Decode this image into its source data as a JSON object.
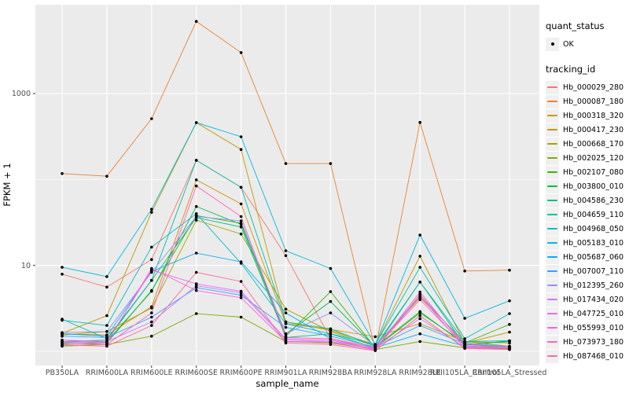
{
  "figure": {
    "background": "#FFFFFF",
    "panel_background": "#EBEBEB",
    "gridline_color": "#FFFFFF",
    "tick_text_color": "#4D4D4D",
    "point_color": "#000000"
  },
  "legend": {
    "quant_status": {
      "title": "quant_status",
      "items": [
        {
          "label": "OK",
          "marker": "point-icon",
          "color": "#000000"
        }
      ]
    },
    "tracking_id": {
      "title": "tracking_id"
    }
  },
  "chart_data": {
    "type": "line",
    "title": "",
    "xlabel": "sample_name",
    "ylabel": "FPKM + 1",
    "y_scale": "log10",
    "ylim": [
      1,
      10000
    ],
    "grid": "on",
    "legend_position": "right",
    "y_tick_labels": [
      {
        "label": "1000",
        "value": 1000
      },
      {
        "label": "10",
        "value": 10
      }
    ],
    "y_gridlines_major": [
      10,
      1000
    ],
    "y_gridlines_minor": [
      1,
      100
    ],
    "categories": [
      "PB350LA",
      "RRIM600LA",
      "RRIM600LE",
      "RRIM600SE",
      "RRIM600PE",
      "RRIM901LA",
      "RRIM928BA",
      "RRIM928LA",
      "RRIM928LE",
      "RRII105LA_Control",
      "RRII105LA_Stressed"
    ],
    "series": [
      {
        "name": "Hb_000029_280",
        "color": "#F8766D",
        "values": [
          7.9,
          5.6,
          11.7,
          167,
          81,
          13,
          1.4,
          1.05,
          4.6,
          1.2,
          1.1
        ]
      },
      {
        "name": "Hb_000087_180",
        "color": "#EA8331",
        "values": [
          117,
          109,
          509,
          6900,
          2990,
          153,
          153,
          1.05,
          461,
          8.6,
          8.8
        ]
      },
      {
        "name": "Hb_000318_320",
        "color": "#D89000",
        "values": [
          1.6,
          1.55,
          3.3,
          99,
          52,
          2.1,
          1.8,
          1.48,
          2.1,
          1.3,
          1.25
        ]
      },
      {
        "name": "Hb_000417_230",
        "color": "#C09B00",
        "values": [
          1.62,
          2.6,
          41.5,
          458,
          223,
          2.2,
          1.75,
          1.2,
          12.8,
          1.25,
          1.67
        ]
      },
      {
        "name": "Hb_000668_170",
        "color": "#A3A500",
        "values": [
          1.55,
          1.7,
          3.2,
          33.6,
          23.2,
          3.1,
          1.7,
          1.15,
          4.2,
          1.3,
          1.15
        ]
      },
      {
        "name": "Hb_002025_120",
        "color": "#7CAE00",
        "values": [
          1.15,
          1.2,
          1.5,
          2.75,
          2.5,
          1.3,
          1.25,
          1.05,
          1.3,
          1.1,
          1.08
        ]
      },
      {
        "name": "Hb_002107_080",
        "color": "#39B600",
        "values": [
          1.2,
          1.25,
          5.1,
          38,
          31,
          1.5,
          4.95,
          1.1,
          2.8,
          1.25,
          2.06
        ]
      },
      {
        "name": "Hb_003800_010",
        "color": "#00BB4E",
        "values": [
          1.25,
          1.3,
          5.0,
          48.5,
          30,
          1.6,
          3.8,
          1.12,
          2.9,
          1.2,
          1.3
        ]
      },
      {
        "name": "Hb_004586_230",
        "color": "#00BF7D",
        "values": [
          1.3,
          1.35,
          6.7,
          36,
          28,
          1.45,
          1.6,
          1.1,
          6.4,
          1.18,
          1.33
        ]
      },
      {
        "name": "Hb_004659_110",
        "color": "#00C1A3",
        "values": [
          2.37,
          1.4,
          6.7,
          167,
          81,
          2.2,
          1.83,
          1.15,
          6.4,
          1.3,
          1.33
        ]
      },
      {
        "name": "Hb_004968_050",
        "color": "#00BFC4",
        "values": [
          2.3,
          2.0,
          16.3,
          40,
          10.6,
          2.1,
          1.6,
          1.2,
          9.5,
          1.4,
          2.75
        ]
      },
      {
        "name": "Hb_005183_010",
        "color": "#00BAE0",
        "values": [
          9.5,
          7.4,
          45,
          458,
          314,
          14.8,
          9.2,
          1.2,
          22.5,
          2.42,
          3.87
        ]
      },
      {
        "name": "Hb_005687_060",
        "color": "#00B0F6",
        "values": [
          1.6,
          1.5,
          8.5,
          13.9,
          11,
          2.8,
          1.4,
          1.1,
          1.6,
          1.15,
          1.1
        ]
      },
      {
        "name": "Hb_007007_110",
        "color": "#35A2FF",
        "values": [
          1.5,
          1.45,
          2.5,
          5.5,
          4.5,
          1.9,
          1.5,
          1.12,
          2.0,
          1.22,
          1.12
        ]
      },
      {
        "name": "Hb_012395_260",
        "color": "#9590FF",
        "values": [
          1.65,
          1.7,
          8.3,
          37,
          33,
          1.6,
          2.8,
          1.16,
          4.4,
          1.25,
          1.14
        ]
      },
      {
        "name": "Hb_017434_020",
        "color": "#C77CFF",
        "values": [
          1.35,
          1.3,
          2.2,
          5.8,
          4.8,
          1.35,
          1.3,
          1.08,
          2.4,
          1.12,
          1.1
        ]
      },
      {
        "name": "Hb_047725_010",
        "color": "#E76BF3",
        "values": [
          1.3,
          1.28,
          8.8,
          6.1,
          5.0,
          1.4,
          1.35,
          1.06,
          4.9,
          1.14,
          1.12
        ]
      },
      {
        "name": "Hb_055993_010",
        "color": "#FA62DB",
        "values": [
          1.28,
          1.25,
          9.2,
          5.1,
          4.2,
          1.3,
          1.28,
          1.04,
          4.4,
          1.1,
          1.06
        ]
      },
      {
        "name": "Hb_073973_180",
        "color": "#FF62BC",
        "values": [
          1.22,
          1.2,
          2.8,
          84,
          37,
          1.45,
          1.4,
          1.1,
          4.0,
          1.16,
          1.1
        ]
      },
      {
        "name": "Hb_087468_010",
        "color": "#FF6A98",
        "values": [
          1.18,
          1.15,
          2.0,
          8.3,
          6.5,
          1.25,
          1.2,
          1.02,
          2.6,
          1.08,
          1.05
        ]
      }
    ]
  }
}
